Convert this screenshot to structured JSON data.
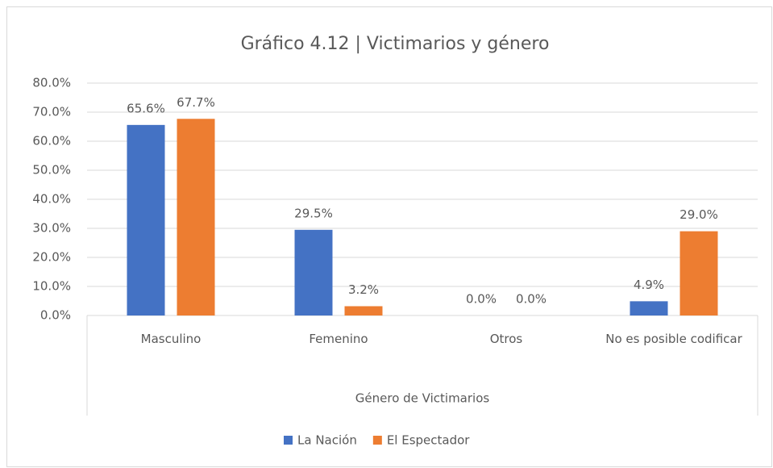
{
  "chart_data": {
    "type": "bar",
    "title": "Gráfico 4.12 | Victimarios y género",
    "x_label": "Género de Victimarios",
    "categories": [
      "Masculino",
      "Femenino",
      "Otros",
      "No es posible codificar"
    ],
    "series": [
      {
        "name": "La Nación",
        "color": "#4472c4",
        "values": [
          65.6,
          29.5,
          0,
          4.9
        ],
        "value_labels": [
          "65.6%",
          "29.5%",
          "0.0%",
          "4.9%"
        ]
      },
      {
        "name": "El Espectador",
        "color": "#ed7d31",
        "values": [
          67.7,
          3.2,
          0,
          29.0
        ],
        "value_labels": [
          "67.7%",
          "3.2%",
          "0.0%",
          "29.0%"
        ]
      }
    ],
    "ylim": [
      0,
      80
    ],
    "yticks": [
      {
        "value": 0,
        "label": "0.0%"
      },
      {
        "value": 10,
        "label": "10.0%"
      },
      {
        "value": 20,
        "label": "20.0%"
      },
      {
        "value": 30,
        "label": "30.0%"
      },
      {
        "value": 40,
        "label": "40.0%"
      },
      {
        "value": 50,
        "label": "50.0%"
      },
      {
        "value": 60,
        "label": "60.0%"
      },
      {
        "value": 70,
        "label": "70.0%"
      },
      {
        "value": 80,
        "label": "80.0%"
      }
    ],
    "grid": true,
    "legend": "bottom"
  }
}
